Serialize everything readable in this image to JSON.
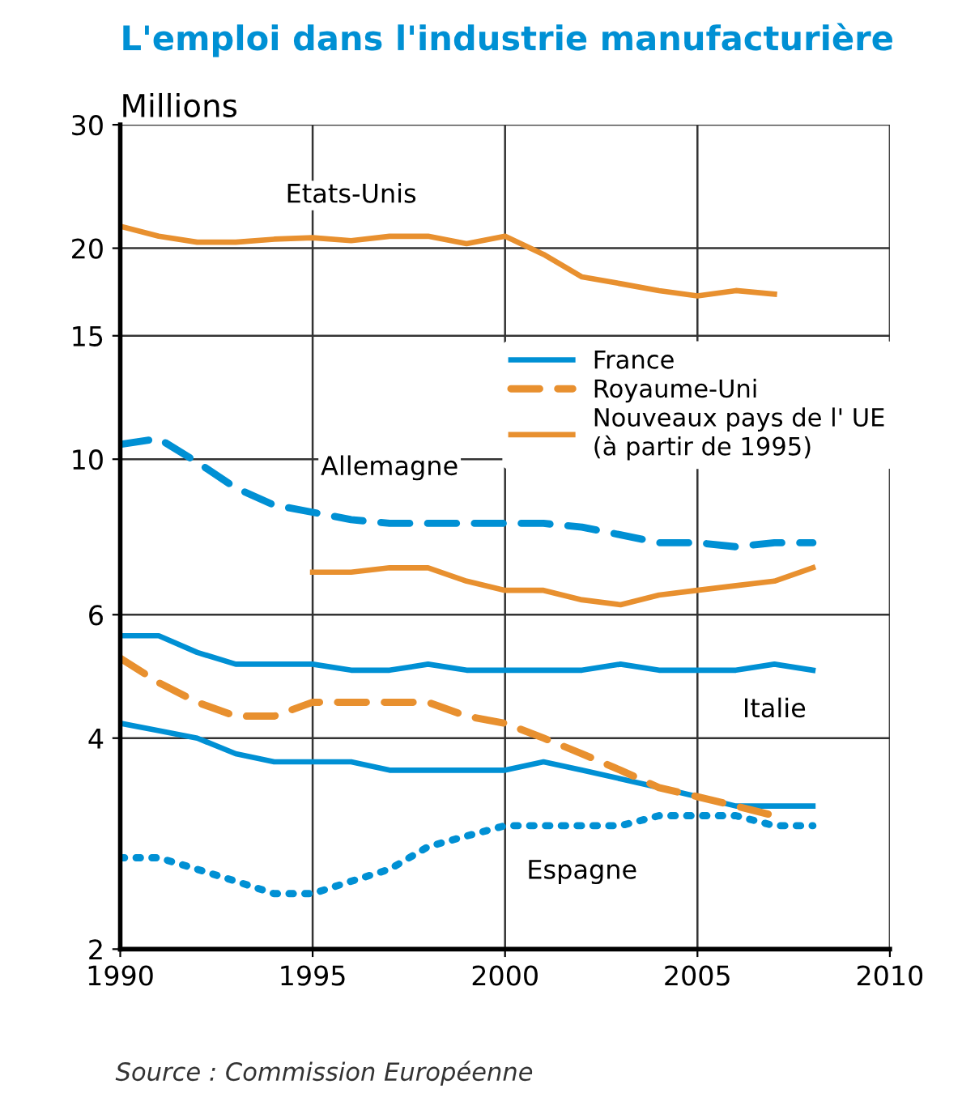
{
  "chart_data": {
    "type": "line",
    "title": "L'emploi dans l'industrie manufacturière",
    "ylabel": "Millions",
    "x": [
      1990,
      1991,
      1992,
      1993,
      1994,
      1995,
      1996,
      1997,
      1998,
      1999,
      2000,
      2001,
      2002,
      2003,
      2004,
      2005,
      2006,
      2007,
      2008
    ],
    "series": [
      {
        "name": "France",
        "color": "#0090d4",
        "line_style": "solid",
        "values": [
          4.2,
          4.1,
          4.0,
          3.8,
          3.7,
          3.7,
          3.7,
          3.6,
          3.6,
          3.6,
          3.6,
          3.7,
          3.6,
          3.5,
          3.4,
          3.3,
          3.2,
          3.2,
          3.2
        ]
      },
      {
        "name": "Royaume-Uni",
        "color": "#e8902f",
        "line_style": "dashed",
        "values": [
          5.2,
          4.8,
          4.5,
          4.3,
          4.3,
          4.5,
          4.5,
          4.5,
          4.5,
          4.3,
          4.2,
          4.0,
          3.8,
          3.6,
          3.4,
          3.3,
          3.2,
          3.1,
          null
        ]
      },
      {
        "name": "Nouveaux pays de l' UE\n(à partir de 1995)",
        "color": "#e8902f",
        "line_style": "solid",
        "values": [
          null,
          null,
          null,
          null,
          null,
          6.9,
          6.9,
          7.0,
          7.0,
          6.7,
          6.5,
          6.5,
          6.3,
          6.2,
          6.4,
          6.5,
          6.6,
          6.7,
          7.0
        ]
      },
      {
        "name": "Etats-Unis",
        "color": "#e8902f",
        "line_style": "solid",
        "values": [
          21.5,
          20.8,
          20.4,
          20.4,
          20.6,
          20.7,
          20.5,
          20.8,
          20.8,
          20.3,
          20.8,
          19.6,
          18.2,
          17.8,
          17.4,
          17.1,
          17.4,
          17.2,
          null
        ]
      },
      {
        "name": "Allemagne",
        "color": "#0090d4",
        "line_style": "dashed",
        "values": [
          10.5,
          10.7,
          9.9,
          9.1,
          8.6,
          8.4,
          8.2,
          8.1,
          8.1,
          8.1,
          8.1,
          8.1,
          8.0,
          7.8,
          7.6,
          7.6,
          7.5,
          7.6,
          7.6
        ]
      },
      {
        "name": "Italie",
        "color": "#0090d4",
        "line_style": "solid",
        "values": [
          5.6,
          5.6,
          5.3,
          5.1,
          5.1,
          5.1,
          5.0,
          5.0,
          5.1,
          5.0,
          5.0,
          5.0,
          5.0,
          5.1,
          5.0,
          5.0,
          5.0,
          5.1,
          5.0
        ]
      },
      {
        "name": "Espagne",
        "color": "#0090d4",
        "line_style": "dotted",
        "values": [
          2.7,
          2.7,
          2.6,
          2.5,
          2.4,
          2.4,
          2.5,
          2.6,
          2.8,
          2.9,
          3.0,
          3.0,
          3.0,
          3.0,
          3.1,
          3.1,
          3.1,
          3.0,
          3.0
        ]
      }
    ],
    "annotations": [
      "Source : Commission Européenne"
    ],
    "log": "y",
    "xlim": [
      1990,
      2010
    ],
    "ylim": [
      2,
      30
    ],
    "xticks": [
      1990,
      1995,
      2000,
      2005,
      2010
    ],
    "yticks": [
      2,
      4,
      6,
      10,
      15,
      20,
      30
    ],
    "grid": true,
    "legend": "right"
  }
}
